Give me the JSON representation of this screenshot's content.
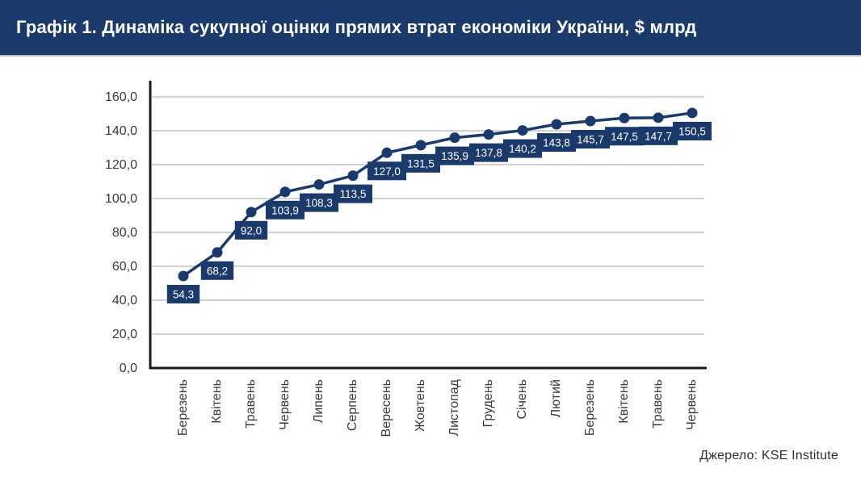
{
  "header": {
    "title": "Графік 1. Динаміка сукупної оцінки прямих втрат економіки України, $ млрд"
  },
  "footer": {
    "source": "Джерело: KSE Institute"
  },
  "colors": {
    "navy": "#1a3a6b",
    "grid": "#b7b7b7",
    "axis": "#1a1a1a",
    "tick_text": "#3a3a3a",
    "label_text": "#ffffff"
  },
  "chart_data": {
    "type": "line",
    "title": "Графік 1. Динаміка сукупної оцінки прямих втрат економіки України, $ млрд",
    "categories": [
      "Березень",
      "Квітень",
      "Травень",
      "Червень",
      "Липень",
      "Серпень",
      "Вересень",
      "Жовтень",
      "Листопад",
      "Грудень",
      "Січень",
      "Лютий",
      "Березень",
      "Квітень",
      "Травень",
      "Червень"
    ],
    "values": [
      54.3,
      68.2,
      92.0,
      103.9,
      108.3,
      113.5,
      127.0,
      131.5,
      135.9,
      137.8,
      140.2,
      143.8,
      145.7,
      147.5,
      147.7,
      150.5
    ],
    "value_labels": [
      "54,3",
      "68,2",
      "92,0",
      "103,9",
      "108,3",
      "113,5",
      "127,0",
      "131,5",
      "135,9",
      "137,8",
      "140,2",
      "143,8",
      "145,7",
      "147,5",
      "147,7",
      "150,5"
    ],
    "y_ticks": {
      "values": [
        0,
        20,
        40,
        60,
        80,
        100,
        120,
        140,
        160
      ],
      "labels": [
        "0,0",
        "20,0",
        "40,0",
        "60,0",
        "80,0",
        "100,0",
        "120,0",
        "140,0",
        "160,0"
      ]
    },
    "ylim": [
      0,
      160
    ],
    "xlabel": "",
    "ylabel": "",
    "grid": "horizontal",
    "legend": "none",
    "marker": "circle",
    "line_color": "#1a3a6b",
    "source": "Джерело: KSE Institute"
  }
}
